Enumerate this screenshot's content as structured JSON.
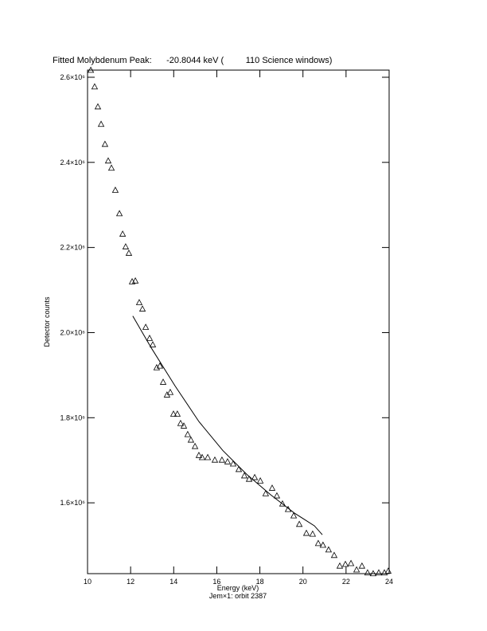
{
  "chart_data": {
    "type": "scatter",
    "title": "Fitted Molybdenum Peak:      -20.8044 keV (         110 Science windows)",
    "x_label": "Energy (keV)",
    "y_label": "Detector counts",
    "subtitle": "Jem×1: orbit 2387",
    "xlim": [
      10,
      24
    ],
    "ylim": [
      1433600,
      2616800
    ],
    "xticks": [
      10,
      12,
      14,
      16,
      18,
      20,
      22,
      24
    ],
    "yticks": [
      {
        "value": 1600000,
        "label": "1.6×10⁶"
      },
      {
        "value": 1800000,
        "label": "1.8×10⁶"
      },
      {
        "value": 2000000,
        "label": "2.0×10⁶"
      },
      {
        "value": 2200000,
        "label": "2.2×10⁶"
      },
      {
        "value": 2400000,
        "label": "2.4×10⁶"
      },
      {
        "value": 2600000,
        "label": "2.6×10⁶"
      }
    ],
    "color": "#000000",
    "points": {
      "x": [
        10.15,
        10.33,
        10.48,
        10.63,
        10.81,
        10.96,
        11.11,
        11.29,
        11.48,
        11.63,
        11.77,
        11.92,
        12.07,
        12.22,
        12.4,
        12.55,
        12.7,
        12.88,
        13.03,
        13.21,
        13.36,
        13.51,
        13.69,
        13.84,
        13.99,
        14.17,
        14.32,
        14.47,
        14.65,
        14.8,
        14.99,
        15.17,
        15.32,
        15.58,
        15.91,
        16.24,
        16.5,
        16.76,
        17.02,
        17.28,
        17.5,
        17.76,
        18.02,
        18.27,
        18.57,
        18.79,
        19.05,
        19.31,
        19.57,
        19.83,
        20.16,
        20.45,
        20.71,
        20.93,
        21.19,
        21.45,
        21.71,
        21.97,
        22.23,
        22.49,
        22.74,
        23.0,
        23.26,
        23.52,
        23.78,
        23.96
      ],
      "y": [
        2617000,
        2578000,
        2531000,
        2490000,
        2443000,
        2404000,
        2387000,
        2335000,
        2280000,
        2232000,
        2202000,
        2187000,
        2120000,
        2122000,
        2071000,
        2056000,
        2013000,
        1987000,
        1972000,
        1918000,
        1922000,
        1884000,
        1854000,
        1860000,
        1809000,
        1809000,
        1787000,
        1781000,
        1761000,
        1748000,
        1733000,
        1712000,
        1707000,
        1707000,
        1701000,
        1701000,
        1697000,
        1692000,
        1679000,
        1664000,
        1656000,
        1660000,
        1652000,
        1622000,
        1635000,
        1617000,
        1598000,
        1585000,
        1570000,
        1550000,
        1529000,
        1527000,
        1505000,
        1501000,
        1490000,
        1477000,
        1452000,
        1456000,
        1458000,
        1443000,
        1452000,
        1436000,
        1434000,
        1436000,
        1436000,
        1440000
      ]
    },
    "fit": {
      "x": [
        12.1,
        12.96,
        14.06,
        15.17,
        16.28,
        17.39,
        18.5,
        19.6,
        20.53,
        20.9
      ],
      "y": [
        2039000,
        1964000,
        1875000,
        1791000,
        1723000,
        1667000,
        1619000,
        1576000,
        1546000,
        1525000
      ]
    }
  }
}
